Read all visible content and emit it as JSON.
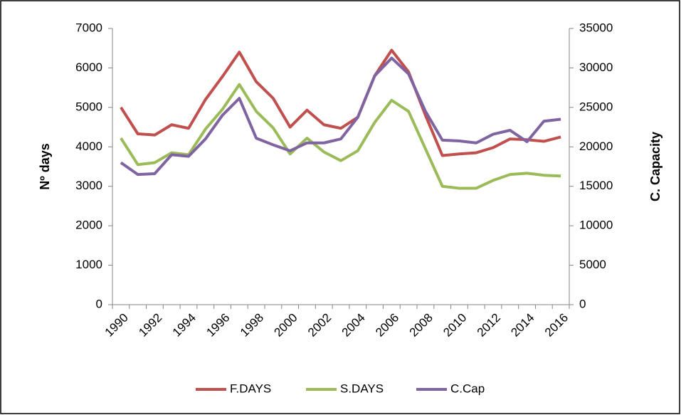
{
  "chart_data": {
    "type": "line",
    "categories": [
      "1990",
      null,
      "1992",
      null,
      "1994",
      null,
      "1996",
      null,
      "1998",
      null,
      "2000",
      null,
      "2002",
      null,
      "2004",
      null,
      "2006",
      null,
      "2008",
      null,
      "2010",
      null,
      "2012",
      null,
      "2014",
      null,
      "2016"
    ],
    "ylabel": "Nº days",
    "y2label": "C. Capacity",
    "ylim": [
      0,
      7000
    ],
    "yticks": [
      0,
      1000,
      2000,
      3000,
      4000,
      5000,
      6000,
      7000
    ],
    "y2lim": [
      0,
      35000
    ],
    "y2ticks": [
      0,
      5000,
      10000,
      15000,
      20000,
      25000,
      30000,
      35000
    ],
    "legend": "bottom",
    "series": [
      {
        "name": "F.DAYS",
        "color": "#c0504d",
        "values": [
          5000,
          4330,
          4300,
          4560,
          4470,
          5200,
          5780,
          6400,
          5650,
          5230,
          4500,
          4930,
          4560,
          4470,
          4750,
          5800,
          6450,
          5900,
          4800,
          3780,
          3820,
          3850,
          3980,
          4200,
          4180,
          4140,
          4250
        ]
      },
      {
        "name": "S.DAYS",
        "color": "#9bbb59",
        "values": [
          4220,
          3550,
          3600,
          3850,
          3800,
          4450,
          4950,
          5580,
          4900,
          4480,
          3820,
          4220,
          3870,
          3650,
          3900,
          4620,
          5180,
          4900,
          3950,
          3000,
          2950,
          2950,
          3150,
          3300,
          3330,
          3280,
          3260
        ]
      },
      {
        "name": "C.Cap",
        "color": "#8064a2",
        "axis": "y2",
        "values": [
          18000,
          16500,
          16600,
          19000,
          18800,
          21000,
          24000,
          26150,
          21100,
          20250,
          19500,
          20500,
          20500,
          21000,
          23750,
          29000,
          31250,
          29250,
          24500,
          20850,
          20750,
          20500,
          21600,
          22100,
          20650,
          23250,
          23500
        ]
      }
    ]
  }
}
